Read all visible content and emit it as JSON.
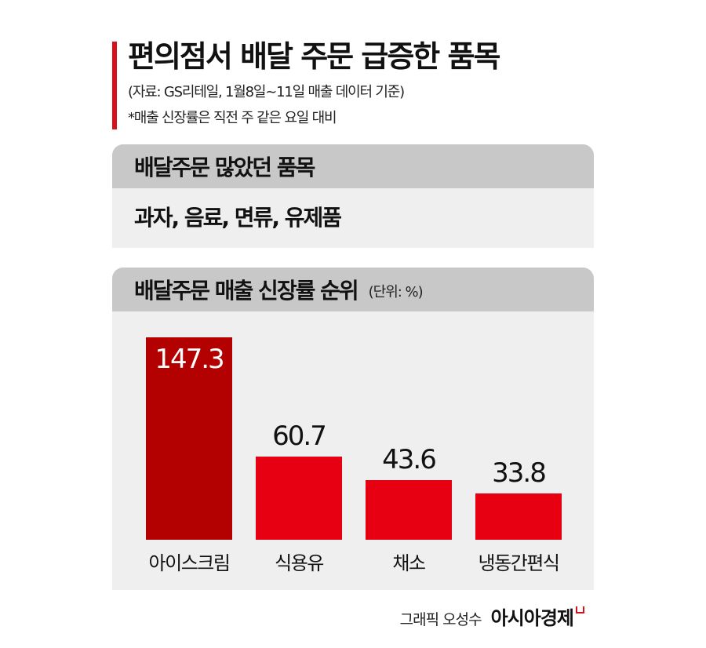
{
  "header": {
    "title": "편의점서 배달 주문 급증한 품목",
    "source": "(자료: GS리테일, 1월8일~11일 매출 데이터 기준)",
    "note": "*매출 신장률은 직전 주 같은 요일 대비"
  },
  "panel_items": {
    "heading": "배달주문 많았던 품목",
    "content": "과자, 음료, 면류, 유제품"
  },
  "panel_ranking": {
    "heading": "배달주문 매출 신장률 순위",
    "unit": "(단위: %)"
  },
  "colors": {
    "accent": "#d8101a",
    "bar_top": "#b30000",
    "bar_other": "#e60012",
    "panel_header": "#c8c8c8",
    "panel_body": "#efefef"
  },
  "chart_data": {
    "type": "bar",
    "title": "배달주문 매출 신장률 순위",
    "unit": "%",
    "categories": [
      "아이스크림",
      "식용유",
      "채소",
      "냉동간편식"
    ],
    "values": [
      147.3,
      60.7,
      43.6,
      33.8
    ],
    "value_labels": [
      "147.3",
      "60.7",
      "43.6",
      "33.8"
    ],
    "xlabel": "",
    "ylabel": "",
    "grid": false,
    "legend": null
  },
  "footer": {
    "author": "그래픽 오성수",
    "brand": "아시아경제"
  }
}
